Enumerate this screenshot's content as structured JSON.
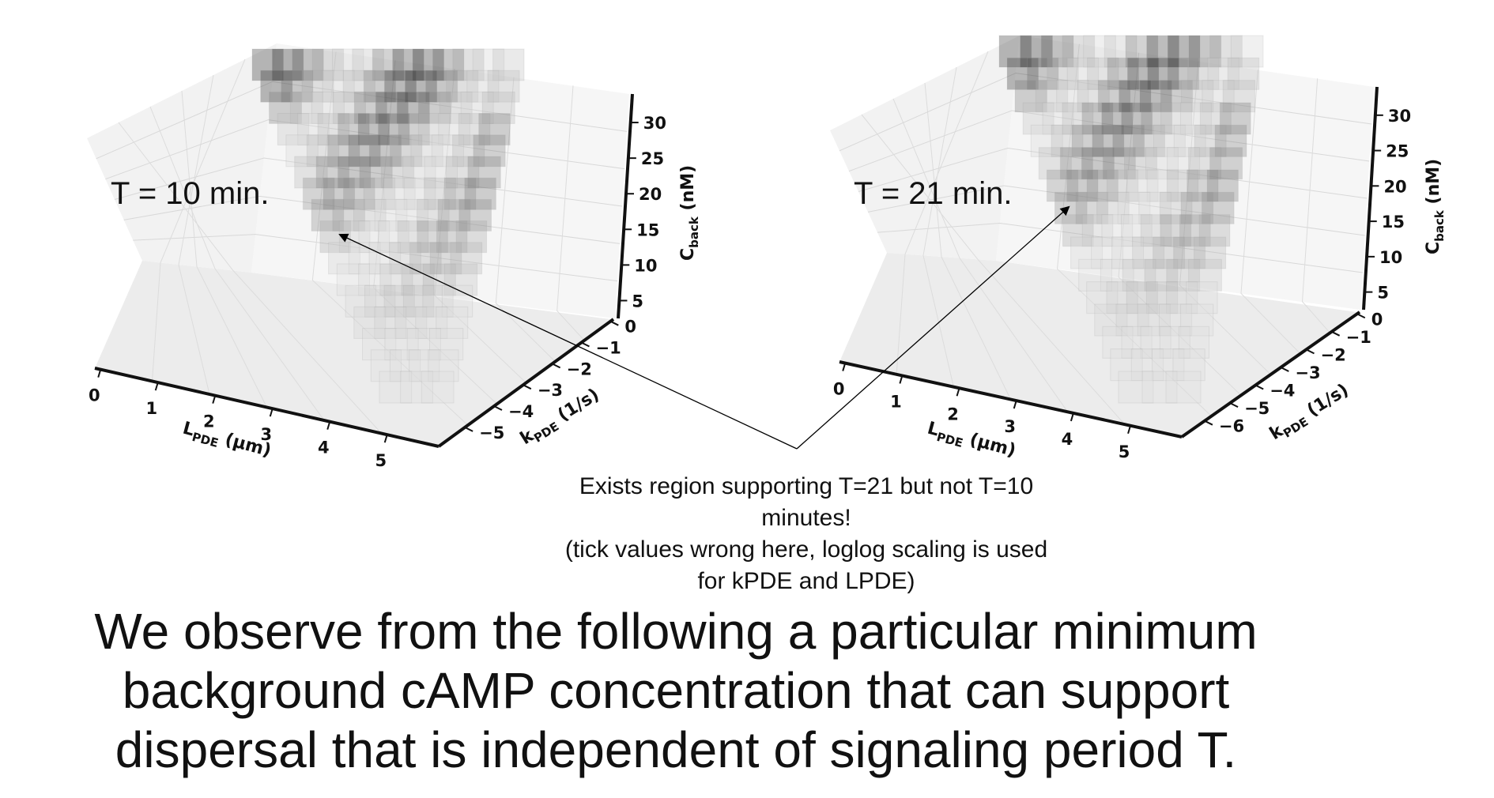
{
  "chart_data": [
    {
      "type": "scatter3d",
      "annotation": "T = 10 min.",
      "xlabel": "L_PDE (μm)",
      "ylabel": "k_PDE (1/s)",
      "zlabel": "C_back (nM)",
      "x_ticks": [
        "0",
        "1",
        "2",
        "3",
        "4",
        "5"
      ],
      "y_ticks": [
        "0",
        "−1",
        "−2",
        "−3",
        "−4",
        "−5"
      ],
      "z_ticks": [
        "5",
        "10",
        "15",
        "20",
        "25",
        "30"
      ]
    },
    {
      "type": "scatter3d",
      "annotation": "T = 21 min.",
      "xlabel": "L_PDE (μm)",
      "ylabel": "k_PDE (1/s)",
      "zlabel": "C_back (nM)",
      "x_ticks": [
        "0",
        "1",
        "2",
        "3",
        "4",
        "5"
      ],
      "y_ticks": [
        "0",
        "−1",
        "−2",
        "−3",
        "−4",
        "−5",
        "−6"
      ],
      "z_ticks": [
        "5",
        "10",
        "15",
        "20",
        "25",
        "30"
      ]
    }
  ],
  "note": [
    "Exists region supporting T=21 but not T=10",
    "minutes!",
    "(tick values wrong here, loglog scaling is used",
    "for kPDE and LPDE)"
  ],
  "headline": [
    "We observe from the following a particular minimum",
    "background cAMP concentration that can support",
    "dispersal that is independent of signaling period T."
  ],
  "axis_text": {
    "x_main": "L",
    "x_sub": "PDE",
    "x_unit": " (μm)",
    "y_main": "k",
    "y_sub": "PDE",
    "y_unit": " (1/s)",
    "z_main": "C",
    "z_sub": "back",
    "z_unit": " (nM)"
  }
}
